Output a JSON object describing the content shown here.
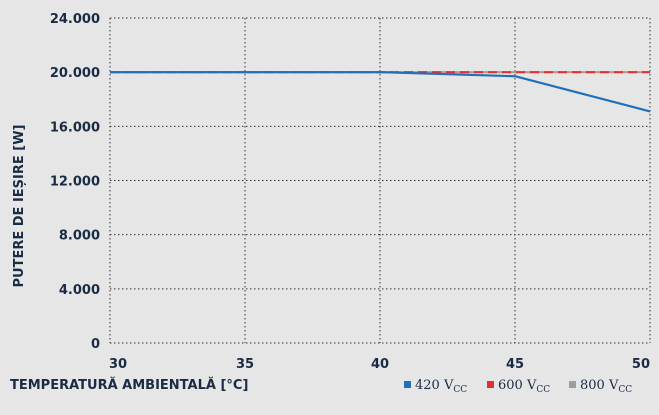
{
  "chart_data": {
    "type": "line",
    "title": "",
    "xlabel": "TEMPERATURĂ AMBIENTALĂ [°C]",
    "ylabel": "PUTERE DE IEȘIRE [W]",
    "xlim": [
      30,
      50
    ],
    "ylim": [
      0,
      24000
    ],
    "x_ticks": [
      30,
      35,
      40,
      45,
      50
    ],
    "x_tick_labels": [
      "30",
      "35",
      "40",
      "45",
      "50"
    ],
    "y_ticks": [
      0,
      4000,
      8000,
      12000,
      16000,
      20000,
      24000
    ],
    "y_tick_labels": [
      "0",
      "4.000",
      "8.000",
      "12.000",
      "16.000",
      "20.000",
      "24.000"
    ],
    "grid": true,
    "legend_position": "bottom-right",
    "series": [
      {
        "name": "420 V",
        "name_subscript": "CC",
        "color": "#1f6fba",
        "style": "solid",
        "x": [
          30,
          35,
          40,
          45,
          50
        ],
        "y": [
          20000,
          20000,
          20000,
          19700,
          17100
        ]
      },
      {
        "name": "600 V",
        "name_subscript": "CC",
        "color": "#e03030",
        "style": "dashed",
        "x": [
          30,
          35,
          40,
          45,
          50
        ],
        "y": [
          20000,
          20000,
          20000,
          20000,
          20000
        ]
      },
      {
        "name": "800 V",
        "name_subscript": "CC",
        "color": "#9e9e9e",
        "style": "dashed",
        "x": [
          30,
          35,
          40,
          45,
          50
        ],
        "y": [
          20000,
          20000,
          20000,
          20000,
          20000
        ]
      }
    ]
  }
}
